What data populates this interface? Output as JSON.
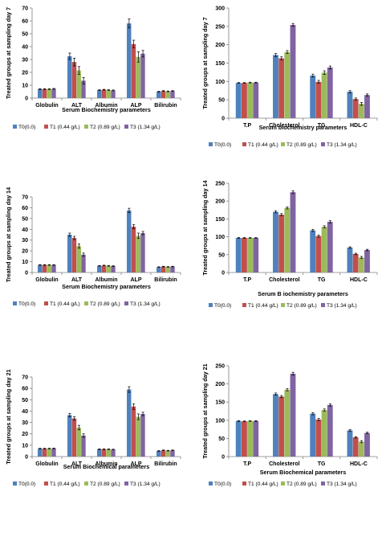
{
  "colors": {
    "T0": "#4F81BD",
    "T1": "#C0504D",
    "T2": "#9BBB59",
    "T3": "#8064A2"
  },
  "chart_data": [
    {
      "type": "bar",
      "ylabel": "Treated groups at sampling day 7",
      "xlabel": "Serum Biochemistry parameters",
      "ylim": [
        0,
        70
      ],
      "ystep": 10,
      "categories": [
        "Globulin",
        "ALT",
        "Albumin",
        "ALP",
        "Bilirubin"
      ],
      "series": [
        {
          "name": "T0(0.0)",
          "values": [
            7,
            32.5,
            6.2,
            58,
            5
          ],
          "errors": [
            0.3,
            2.5,
            0.3,
            3.5,
            0.3
          ]
        },
        {
          "name": "T1 (0.44 g/L)",
          "values": [
            7,
            28,
            6.5,
            42,
            5.5
          ],
          "errors": [
            0.3,
            3,
            0.3,
            3,
            0.3
          ]
        },
        {
          "name": "T2 (0.89 g/L)",
          "values": [
            7,
            21.5,
            6.2,
            32,
            5.2
          ],
          "errors": [
            0.3,
            3,
            0.3,
            4,
            0.3
          ]
        },
        {
          "name": "T3 (1.34 g/L)",
          "values": [
            7.2,
            13.5,
            6,
            34.5,
            5.5
          ],
          "errors": [
            0.3,
            2.5,
            0.3,
            2.5,
            0.3
          ]
        }
      ]
    },
    {
      "type": "bar",
      "ylabel": "Treated groups at sampling day 7",
      "xlabel": "Serum biochemistry parameters",
      "ylim": [
        0,
        300
      ],
      "ystep": 50,
      "categories": [
        "T.P",
        "Cholesterol",
        "TG",
        "HDL-C"
      ],
      "series": [
        {
          "name": "T0(0.0)",
          "values": [
            96,
            172,
            116,
            72
          ],
          "errors": [
            1,
            4,
            4,
            3
          ]
        },
        {
          "name": "T1 (0.44 g/L)",
          "values": [
            96,
            163,
            99,
            52
          ],
          "errors": [
            1,
            4,
            4,
            3
          ]
        },
        {
          "name": "T2 (0.89 g/L)",
          "values": [
            97,
            180,
            124,
            39
          ],
          "errors": [
            1,
            4,
            5,
            4
          ]
        },
        {
          "name": "T3 (1.34 g/L)",
          "values": [
            97,
            254,
            138,
            63
          ],
          "errors": [
            1,
            4,
            4,
            3
          ]
        }
      ]
    },
    {
      "type": "bar",
      "ylabel": "Treated groups at sampling day 14",
      "xlabel": "Serum Biochemistry parameters",
      "ylim": [
        0,
        70
      ],
      "ystep": 10,
      "categories": [
        "Globulin",
        "ALT",
        "Albumin",
        "ALP",
        "Bilirubin"
      ],
      "series": [
        {
          "name": "T0(0.0)",
          "values": [
            7,
            35,
            6.2,
            57.5,
            5
          ],
          "errors": [
            0.3,
            1.5,
            0.3,
            2,
            0.3
          ]
        },
        {
          "name": "T1 (0.44 g/L)",
          "values": [
            7,
            32,
            6.5,
            42.5,
            5.5
          ],
          "errors": [
            0.3,
            1.5,
            0.3,
            2,
            0.3
          ]
        },
        {
          "name": "T2 (0.89 g/L)",
          "values": [
            7,
            24.5,
            6.2,
            34,
            5.2
          ],
          "errors": [
            0.3,
            2,
            0.3,
            2.5,
            0.3
          ]
        },
        {
          "name": "T3 (1.34 g/L)",
          "values": [
            7,
            16.5,
            6,
            36.5,
            5.5
          ],
          "errors": [
            0.3,
            1.5,
            0.3,
            1.5,
            0.3
          ]
        }
      ]
    },
    {
      "type": "bar",
      "ylabel": "Treated groups at sampling day 14",
      "xlabel": "Serum B iochemistry parameters",
      "ylim": [
        0,
        250
      ],
      "ystep": 50,
      "categories": [
        "T.P",
        "Cholesterol",
        "TG",
        "HDL-C"
      ],
      "series": [
        {
          "name": "T0(0.0)",
          "values": [
            97,
            170,
            118,
            70
          ],
          "errors": [
            1,
            3,
            3,
            2
          ]
        },
        {
          "name": "T1 (0.44 g/L)",
          "values": [
            97,
            162,
            102,
            52
          ],
          "errors": [
            1,
            3,
            3,
            2
          ]
        },
        {
          "name": "T2 (0.89 g/L)",
          "values": [
            97,
            181,
            128,
            42
          ],
          "errors": [
            1,
            3,
            3,
            3
          ]
        },
        {
          "name": "T3 (1.34 g/L)",
          "values": [
            97,
            225,
            142,
            63
          ],
          "errors": [
            1,
            4,
            3,
            2
          ]
        }
      ]
    },
    {
      "type": "bar",
      "ylabel": "Treated groups at sampling day 21",
      "xlabel": "Serum Biochemical parameters",
      "ylim": [
        0,
        70
      ],
      "ystep": 10,
      "categories": [
        "Globulin",
        "ALT",
        "Albumin",
        "ALP",
        "Bilirubin"
      ],
      "series": [
        {
          "name": "T0(0.0)",
          "values": [
            7,
            36.5,
            6.5,
            59,
            5
          ],
          "errors": [
            0.3,
            1.5,
            0.3,
            2.5,
            0.3
          ]
        },
        {
          "name": "T1 (0.44 g/L)",
          "values": [
            7,
            33.5,
            6.5,
            44,
            5.5
          ],
          "errors": [
            0.3,
            1.5,
            0.3,
            2.5,
            0.3
          ]
        },
        {
          "name": "T2 (0.89 g/L)",
          "values": [
            7,
            25.5,
            6.5,
            35,
            5.2
          ],
          "errors": [
            0.3,
            2,
            0.3,
            2.5,
            0.3
          ]
        },
        {
          "name": "T3 (1.34 g/L)",
          "values": [
            7.2,
            18.5,
            6.2,
            37.5,
            5.5
          ],
          "errors": [
            0.3,
            1.5,
            0.3,
            1.5,
            0.3
          ]
        }
      ]
    },
    {
      "type": "bar",
      "ylabel": "Treated groups at sampling day 21",
      "xlabel": "Serum Biochemical parameters",
      "ylim": [
        0,
        250
      ],
      "ystep": 50,
      "categories": [
        "T.P",
        "Cholesterol",
        "TG",
        "HDL-C"
      ],
      "series": [
        {
          "name": "T0(0.0)",
          "values": [
            98,
            172,
            118,
            72
          ],
          "errors": [
            1,
            3,
            3,
            2
          ]
        },
        {
          "name": "T1 (0.44 g/L)",
          "values": [
            97,
            165,
            102,
            53
          ],
          "errors": [
            1,
            3,
            3,
            2
          ]
        },
        {
          "name": "T2 (0.89 g/L)",
          "values": [
            98,
            184,
            128,
            41
          ],
          "errors": [
            1,
            3,
            3,
            3
          ]
        },
        {
          "name": "T3 (1.34 g/L)",
          "values": [
            98,
            228,
            142,
            65
          ],
          "errors": [
            1,
            4,
            3,
            2
          ]
        }
      ]
    }
  ]
}
